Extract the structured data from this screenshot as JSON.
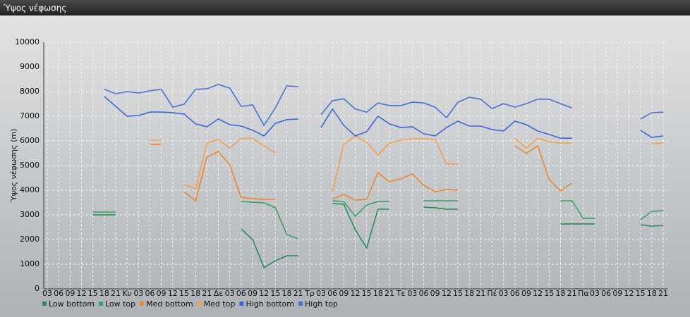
{
  "window_title": "Ύψος νέφωσης",
  "chart_data": {
    "type": "line",
    "y_label": "Ύψος νέφωσης (m)",
    "categories": [
      "03",
      "06",
      "09",
      "12",
      "15",
      "18",
      "21",
      "Κυ",
      "03",
      "06",
      "09",
      "12",
      "15",
      "18",
      "21",
      "Δε",
      "03",
      "06",
      "09",
      "12",
      "15",
      "18",
      "21",
      "Τρ",
      "03",
      "06",
      "09",
      "12",
      "15",
      "18",
      "21",
      "Τε",
      "03",
      "06",
      "09",
      "12",
      "15",
      "18",
      "21",
      "Πέ",
      "03",
      "06",
      "09",
      "12",
      "15",
      "18",
      "21",
      "Πα",
      "03",
      "06",
      "09",
      "12",
      "15",
      "18",
      "21"
    ],
    "ylim": [
      0,
      10000
    ],
    "yticks": [
      0,
      1000,
      2000,
      3000,
      4000,
      5000,
      6000,
      7000,
      8000,
      9000,
      10000
    ],
    "grid": true,
    "series": [
      {
        "name": "Low bottom",
        "color": "#2e8b57",
        "values": [
          null,
          null,
          null,
          null,
          3000,
          3000,
          3000,
          null,
          null,
          null,
          null,
          null,
          null,
          null,
          null,
          null,
          null,
          2430,
          2000,
          860,
          1140,
          1340,
          1340,
          null,
          null,
          3460,
          3430,
          2400,
          1660,
          3230,
          3230,
          null,
          null,
          3310,
          3290,
          3230,
          3230,
          null,
          null,
          null,
          null,
          null,
          null,
          null,
          null,
          2630,
          2630,
          2630,
          2630,
          null,
          null,
          null,
          2600,
          2540,
          2570
        ]
      },
      {
        "name": "Low top",
        "color": "#3aa06a",
        "values": [
          null,
          null,
          null,
          null,
          3110,
          3110,
          3110,
          null,
          null,
          null,
          null,
          null,
          null,
          null,
          null,
          null,
          null,
          3540,
          3510,
          3490,
          3290,
          2200,
          2030,
          null,
          null,
          3570,
          3540,
          2940,
          3400,
          3540,
          3540,
          null,
          null,
          3570,
          3570,
          3570,
          3570,
          null,
          null,
          null,
          null,
          null,
          null,
          null,
          null,
          3570,
          3570,
          2860,
          2860,
          null,
          null,
          null,
          2800,
          3140,
          3170
        ]
      },
      {
        "name": "Med bottom",
        "color": "#e8892c",
        "values": [
          null,
          null,
          null,
          null,
          null,
          null,
          null,
          null,
          null,
          5860,
          5860,
          null,
          3940,
          3570,
          5340,
          5570,
          5030,
          3710,
          3660,
          3630,
          3630,
          null,
          null,
          null,
          null,
          3630,
          3830,
          3600,
          3630,
          4710,
          4340,
          4460,
          4660,
          4200,
          3940,
          4030,
          4000,
          null,
          null,
          null,
          null,
          5800,
          5490,
          5800,
          4430,
          3970,
          4290,
          null,
          null,
          null,
          null,
          null,
          null,
          null,
          null
        ]
      },
      {
        "name": "Med top",
        "color": "#f0a050",
        "values": [
          null,
          null,
          null,
          null,
          null,
          null,
          null,
          null,
          null,
          6030,
          6030,
          null,
          4230,
          4060,
          5910,
          6060,
          5710,
          6090,
          6110,
          5800,
          5510,
          null,
          null,
          null,
          null,
          3940,
          5860,
          6200,
          5940,
          5430,
          5910,
          6030,
          6090,
          6090,
          6060,
          5060,
          5060,
          null,
          null,
          null,
          null,
          6110,
          5710,
          6110,
          5970,
          5910,
          5910,
          null,
          null,
          null,
          null,
          null,
          null,
          5890,
          5910
        ]
      },
      {
        "name": "High bottom",
        "color": "#3a66d8",
        "values": [
          null,
          null,
          null,
          null,
          null,
          7800,
          7400,
          7000,
          7030,
          7170,
          7170,
          7140,
          7090,
          6690,
          6570,
          6890,
          6660,
          6600,
          6430,
          6200,
          6710,
          6860,
          6890,
          null,
          6540,
          7290,
          6630,
          6200,
          6370,
          7000,
          6690,
          6540,
          6570,
          6290,
          6200,
          6540,
          6800,
          6600,
          6600,
          6460,
          6400,
          6800,
          6660,
          6400,
          6260,
          6110,
          6110,
          null,
          null,
          null,
          null,
          null,
          6430,
          6140,
          6200
        ]
      },
      {
        "name": "High top",
        "color": "#4a72d0",
        "values": [
          null,
          null,
          null,
          null,
          null,
          8090,
          7910,
          8000,
          7940,
          8030,
          8090,
          7370,
          7490,
          8090,
          8110,
          8290,
          8140,
          7400,
          7460,
          6630,
          7340,
          8230,
          8200,
          null,
          7060,
          7630,
          7710,
          7290,
          7170,
          7540,
          7430,
          7430,
          7570,
          7540,
          7370,
          6940,
          7570,
          7770,
          7690,
          7310,
          7510,
          7370,
          7510,
          7690,
          7690,
          7510,
          7340,
          null,
          null,
          null,
          null,
          null,
          6890,
          7140,
          7170
        ]
      }
    ]
  }
}
